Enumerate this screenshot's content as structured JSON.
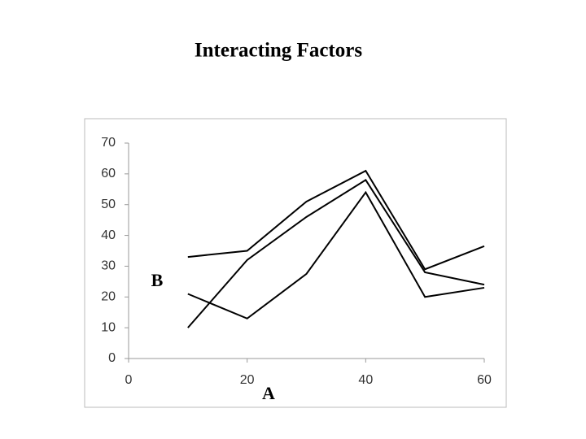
{
  "chart_data": {
    "type": "line",
    "title": "Interacting Factors",
    "x_label": "A",
    "y_label": "B",
    "x": [
      10,
      20,
      30,
      40,
      50,
      60
    ],
    "series": [
      {
        "color": "#000000",
        "values": [
          33,
          35,
          51,
          61,
          29,
          36.5
        ]
      },
      {
        "color": "#000000",
        "values": [
          10,
          32,
          46,
          58,
          28,
          24
        ]
      },
      {
        "color": "#000000",
        "values": [
          21,
          13,
          27.5,
          54,
          20,
          23
        ]
      }
    ],
    "xlim": [
      0,
      60
    ],
    "xticks": [
      0,
      20,
      40,
      60
    ],
    "ylim": [
      0,
      70
    ],
    "yticks": [
      0,
      10,
      20,
      30,
      40,
      50,
      60,
      70
    ],
    "grid": false
  }
}
